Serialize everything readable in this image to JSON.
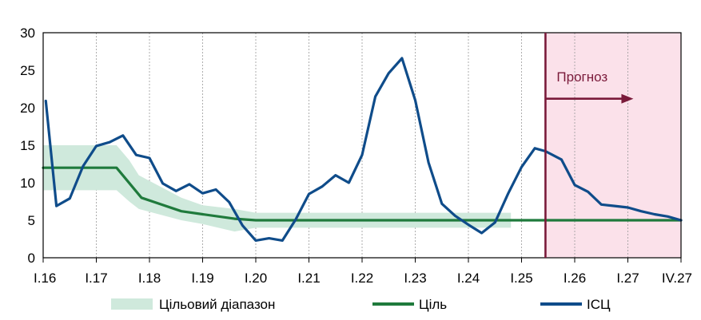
{
  "chart_data": {
    "type": "line",
    "x_tick_labels": [
      "I.16",
      "I.17",
      "I.18",
      "I.19",
      "I.20",
      "I.21",
      "I.22",
      "I.23",
      "I.24",
      "I.25",
      "I.26",
      "I.27",
      "IV.27"
    ],
    "ylim": [
      0,
      30
    ],
    "y_ticks": [
      0,
      5,
      10,
      15,
      20,
      25,
      30
    ],
    "grid": "vertical",
    "legend": {
      "placement": "bottom",
      "items": [
        {
          "label": "Цільовий діапазон",
          "type": "band"
        },
        {
          "label": "Ціль",
          "type": "line"
        },
        {
          "label": "ІСЦ",
          "type": "line"
        }
      ]
    },
    "forecast": {
      "label": "Прогноз",
      "start_x": 9.45,
      "color": "#7a1a3a",
      "shade_color": "#fbe1ea"
    },
    "colors": {
      "cpi": "#0f4c8a",
      "target": "#1f7a3c",
      "band": "#cfe9dc"
    },
    "band": {
      "x": [
        0,
        0.38,
        1.38,
        1.62,
        1.8,
        2.6,
        3.0,
        3.6,
        4.0,
        4.5,
        5.0,
        6.0,
        7.0,
        8.0,
        8.8
      ],
      "low": [
        9,
        9,
        9,
        7.5,
        6.5,
        5,
        4.5,
        3.5,
        4,
        4,
        4,
        4,
        4,
        4,
        4
      ],
      "high": [
        15,
        15,
        15,
        13,
        11,
        8,
        7,
        6.5,
        6,
        6,
        6,
        6,
        6,
        6,
        6
      ]
    },
    "series": [
      {
        "name": "Ціль",
        "x": [
          0,
          1.38,
          1.85,
          2.6,
          3.0,
          3.6,
          4.0,
          12.0
        ],
        "values": [
          12,
          12,
          8,
          6.2,
          5.8,
          5.2,
          5,
          5
        ]
      },
      {
        "name": "ІСЦ",
        "x": [
          0.05,
          0.25,
          0.5,
          0.75,
          1.0,
          1.25,
          1.5,
          1.75,
          2.0,
          2.25,
          2.5,
          2.75,
          3.0,
          3.25,
          3.5,
          3.75,
          4.0,
          4.25,
          4.5,
          4.75,
          5.0,
          5.25,
          5.5,
          5.75,
          6.0,
          6.25,
          6.5,
          6.75,
          7.0,
          7.25,
          7.5,
          7.75,
          8.0,
          8.25,
          8.5,
          8.75,
          9.0,
          9.25,
          9.45,
          9.75,
          10.0,
          10.25,
          10.5,
          10.75,
          11.0,
          11.25,
          11.5,
          11.75,
          12.0
        ],
        "values": [
          20.9,
          6.9,
          7.9,
          12.2,
          14.9,
          15.4,
          16.3,
          13.7,
          13.3,
          9.9,
          8.9,
          9.8,
          8.6,
          9.1,
          7.4,
          4.3,
          2.3,
          2.6,
          2.3,
          5.1,
          8.5,
          9.5,
          11.0,
          10.0,
          13.7,
          21.5,
          24.6,
          26.6,
          21.0,
          12.7,
          7.2,
          5.6,
          4.4,
          3.3,
          4.7,
          8.6,
          12.1,
          14.6,
          14.2,
          13.1,
          9.7,
          8.8,
          7.1,
          6.9,
          6.7,
          6.2,
          5.8,
          5.5,
          5.0
        ]
      }
    ]
  }
}
